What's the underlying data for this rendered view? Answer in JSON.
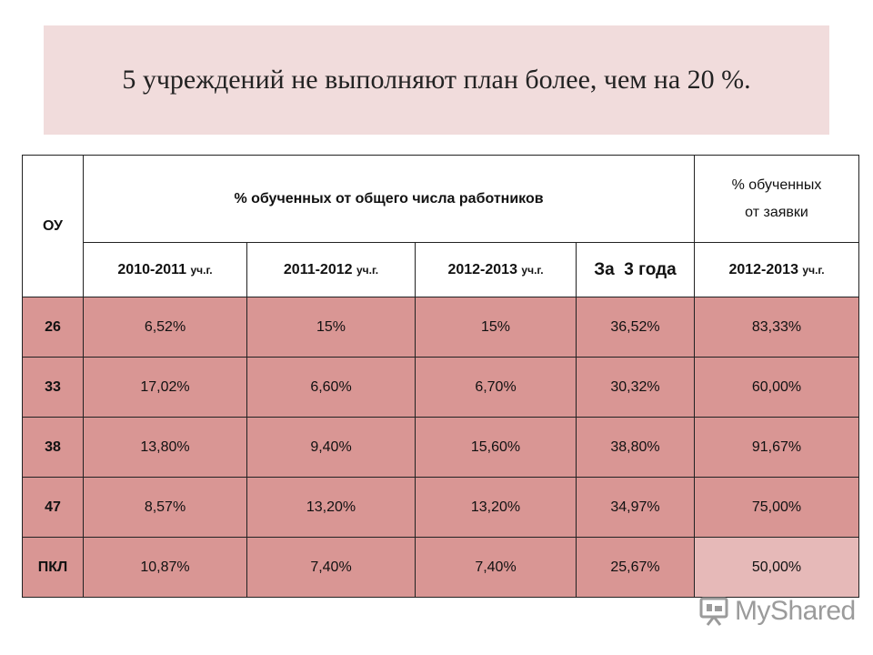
{
  "title": "5 учреждений не выполняют план более, чем на 20 %.",
  "table": {
    "header_ou": "ОУ",
    "header_main": "% обученных от общего числа работников",
    "header_side_line1": "% обученных",
    "header_side_line2": "от заявки",
    "years": [
      {
        "year": "2010-2011",
        "suffix": "уч.г."
      },
      {
        "year": "2011-2012",
        "suffix": "уч.г."
      },
      {
        "year": "2012-2013",
        "suffix": "уч.г."
      },
      {
        "year": "За  3 года",
        "suffix": ""
      },
      {
        "year": "2012-2013",
        "suffix": "уч.г."
      }
    ],
    "rows": [
      {
        "ou": "26",
        "c1": "6,52%",
        "c2": "15%",
        "c3": "15%",
        "c4": "36,52%",
        "c5": "83,33%"
      },
      {
        "ou": "33",
        "c1": "17,02%",
        "c2": "6,60%",
        "c3": "6,70%",
        "c4": "30,32%",
        "c5": "60,00%"
      },
      {
        "ou": "38",
        "c1": "13,80%",
        "c2": "9,40%",
        "c3": "15,60%",
        "c4": "38,80%",
        "c5": "91,67%"
      },
      {
        "ou": "47",
        "c1": "8,57%",
        "c2": "13,20%",
        "c3": "13,20%",
        "c4": "34,97%",
        "c5": "75,00%"
      },
      {
        "ou": "ПКЛ",
        "c1": "10,87%",
        "c2": "7,40%",
        "c3": "7,40%",
        "c4": "25,67%",
        "c5": "50,00%"
      }
    ],
    "colors": {
      "row": "#d99694",
      "highlight": "#e6b9b8"
    }
  },
  "watermark": {
    "text": "MyShared",
    "icon": "presentation-board-icon"
  }
}
